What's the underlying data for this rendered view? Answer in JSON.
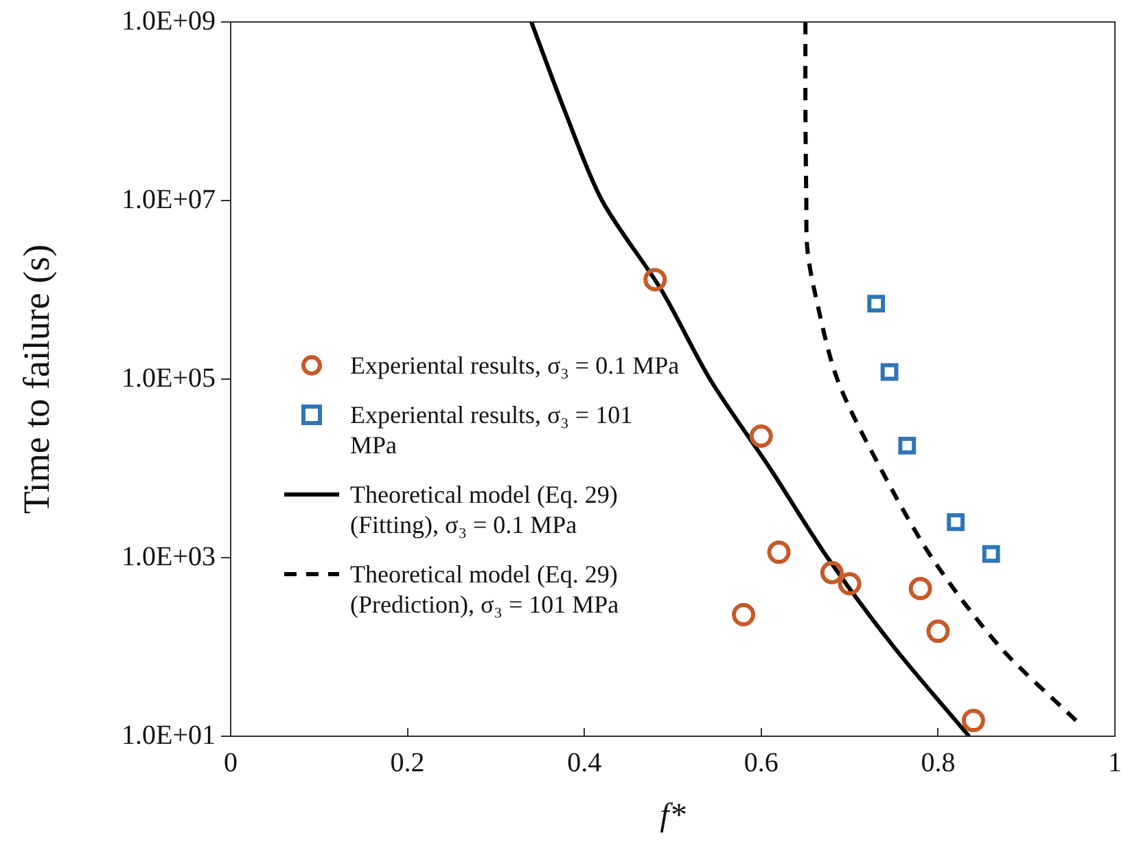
{
  "chart_data": {
    "type": "scatter",
    "xlabel": "f*",
    "ylabel": "Time to failure (s)",
    "log": "y",
    "grid": false,
    "legend": "left",
    "xlim": [
      0,
      1
    ],
    "xticks": [
      0,
      0.2,
      0.4,
      0.6,
      0.8,
      1
    ],
    "ylim": [
      10,
      1000000000
    ],
    "yticks": [
      {
        "value": 10,
        "label": "1.0E+01"
      },
      {
        "value": 1000,
        "label": "1.0E+03"
      },
      {
        "value": 100000,
        "label": "1.0E+05"
      },
      {
        "value": 10000000,
        "label": "1.0E+07"
      },
      {
        "value": 1000000000,
        "label": "1.0E+09"
      }
    ],
    "series": [
      {
        "name": "Experiental results, σ₃ = 0.1 MPa",
        "type": "scatter",
        "marker": "circle",
        "color": "#c65a28",
        "x": [
          0.48,
          0.6,
          0.62,
          0.58,
          0.68,
          0.7,
          0.78,
          0.8,
          0.84
        ],
        "values": [
          1300000,
          23000,
          1150,
          230,
          680,
          510,
          450,
          150,
          15
        ]
      },
      {
        "name": "Experiental results, σ₃ = 101 MPa",
        "type": "scatter",
        "marker": "square",
        "color": "#2e75b6",
        "x": [
          0.73,
          0.745,
          0.765,
          0.82,
          0.86
        ],
        "values": [
          700000,
          120000,
          18000,
          2500,
          1100
        ]
      },
      {
        "name": "Theoretical model (Eq. 29) (Fitting), σ₃ = 0.1 MPa",
        "type": "line",
        "marker": "none",
        "line_style": "solid",
        "color": "#000000",
        "x": [
          0.34,
          0.378,
          0.42,
          0.487,
          0.542,
          0.61,
          0.675,
          0.75,
          0.835
        ],
        "values": [
          1000000000,
          100000000,
          10000000,
          1000000,
          100000,
          10000,
          1000,
          100,
          10
        ]
      },
      {
        "name": "Theoretical model (Eq. 29) (Prediction), σ₃ = 101 MPa",
        "type": "line",
        "marker": "none",
        "line_style": "dashed",
        "color": "#000000",
        "x": [
          0.65,
          0.65,
          0.651,
          0.652,
          0.66,
          0.686,
          0.735,
          0.793,
          0.87,
          0.956
        ],
        "values": [
          1000000000,
          100000000,
          10000000,
          3000000,
          1000000,
          100000,
          10000,
          1000,
          100,
          15
        ]
      }
    ]
  }
}
